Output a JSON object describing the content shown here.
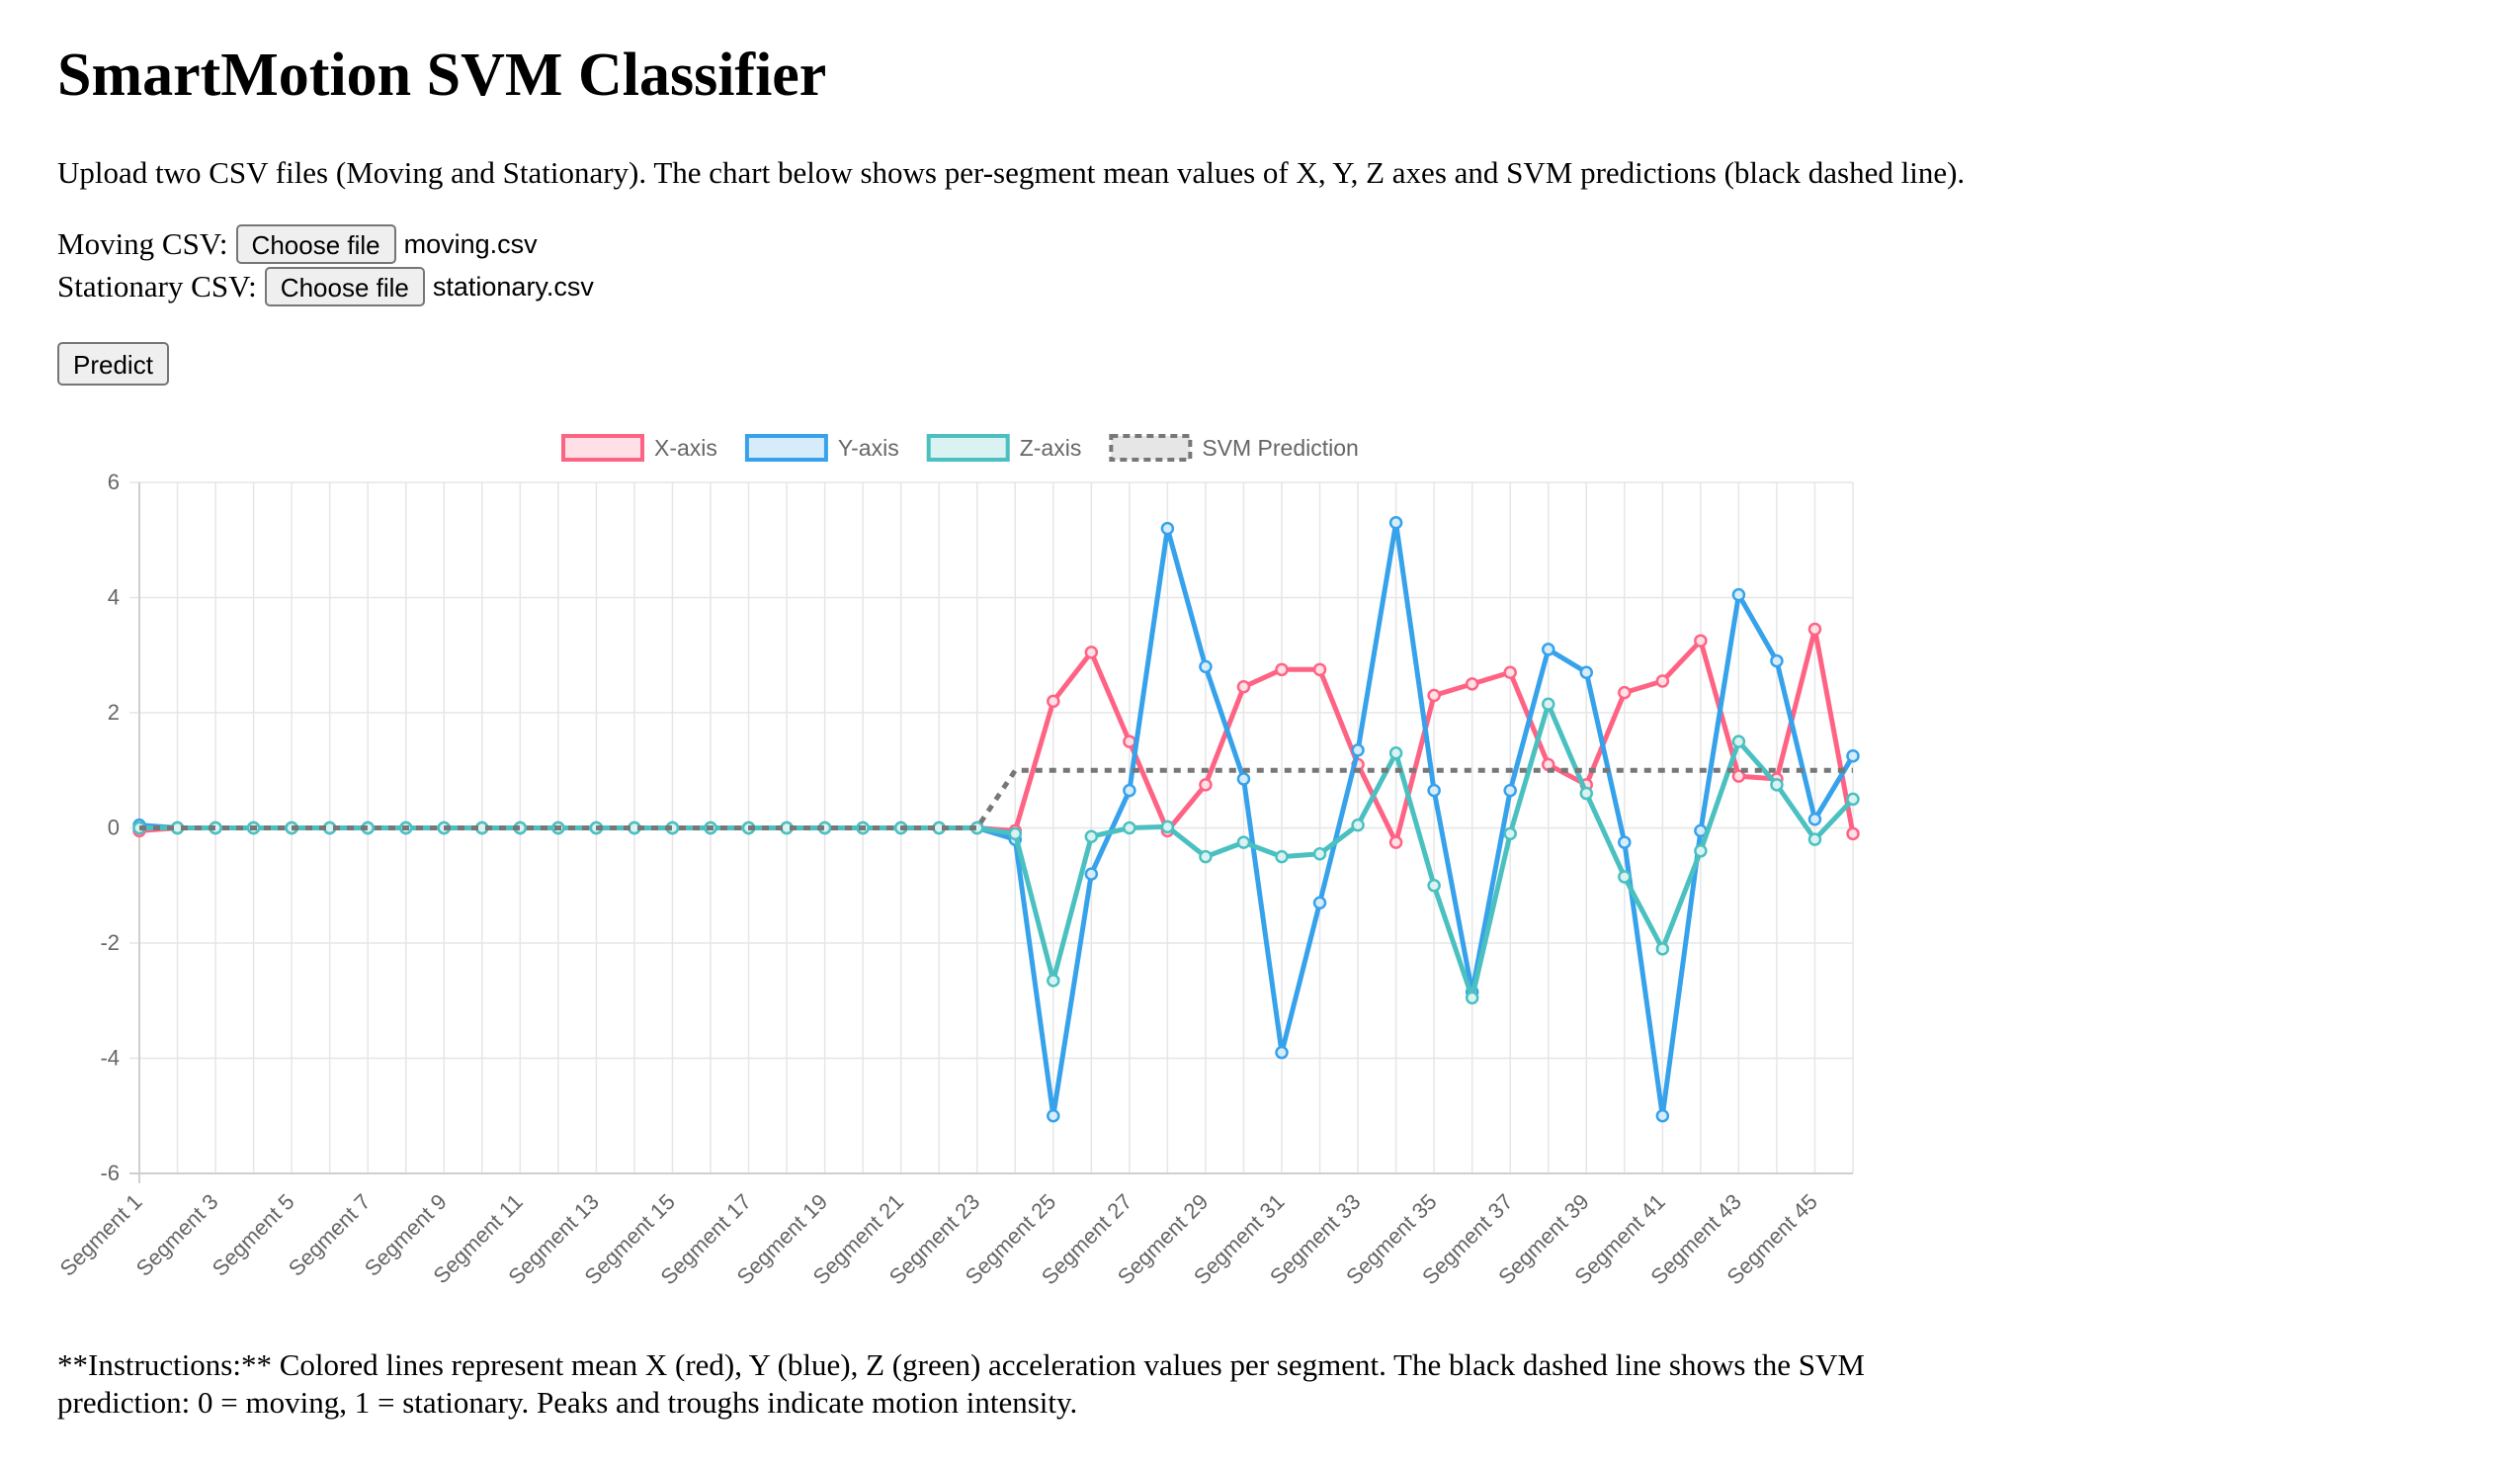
{
  "page": {
    "title": "SmartMotion SVM Classifier",
    "description": "Upload two CSV files (Moving and Stationary). The chart below shows per-segment mean values of X, Y, Z axes and SVM predictions (black dashed line).",
    "moving_label": "Moving CSV:",
    "moving_button": "Choose file",
    "moving_file": "moving.csv",
    "stationary_label": "Stationary CSV:",
    "stationary_button": "Choose file",
    "stationary_file": "stationary.csv",
    "predict_button": "Predict",
    "instructions": "**Instructions:** Colored lines represent mean X (red), Y (blue), Z (green) acceleration values per segment. The black dashed line shows the SVM prediction: 0 = moving, 1 = stationary. Peaks and troughs indicate motion intensity."
  },
  "chart_data": {
    "type": "line",
    "categories": [
      "Segment 1",
      "Segment 2",
      "Segment 3",
      "Segment 4",
      "Segment 5",
      "Segment 6",
      "Segment 7",
      "Segment 8",
      "Segment 9",
      "Segment 10",
      "Segment 11",
      "Segment 12",
      "Segment 13",
      "Segment 14",
      "Segment 15",
      "Segment 16",
      "Segment 17",
      "Segment 18",
      "Segment 19",
      "Segment 20",
      "Segment 21",
      "Segment 22",
      "Segment 23",
      "Segment 24",
      "Segment 25",
      "Segment 26",
      "Segment 27",
      "Segment 28",
      "Segment 29",
      "Segment 30",
      "Segment 31",
      "Segment 32",
      "Segment 33",
      "Segment 34",
      "Segment 35",
      "Segment 36",
      "Segment 37",
      "Segment 38",
      "Segment 39",
      "Segment 40",
      "Segment 41",
      "Segment 42",
      "Segment 43",
      "Segment 44",
      "Segment 45",
      "Segment 46"
    ],
    "ylim": [
      -6,
      6
    ],
    "yticks": [
      6,
      4,
      2,
      0,
      -2,
      -4,
      -6
    ],
    "grid": true,
    "legend_position": "top",
    "series": [
      {
        "name": "X-axis",
        "color": "#ff6384",
        "fill": "#ffe0e6",
        "dashed": false,
        "points": true,
        "values": [
          -0.05,
          0,
          0,
          0,
          0,
          0,
          0,
          0,
          0,
          0,
          0,
          0,
          0,
          0,
          0,
          0,
          0,
          0,
          0,
          0,
          0,
          0,
          0,
          -0.05,
          2.2,
          3.05,
          1.5,
          -0.05,
          0.75,
          2.45,
          2.75,
          2.75,
          1.1,
          -0.25,
          2.3,
          2.5,
          2.7,
          1.1,
          0.75,
          2.35,
          2.55,
          3.25,
          0.9,
          0.85,
          3.45,
          -0.1
        ]
      },
      {
        "name": "Y-axis",
        "color": "#36a2eb",
        "fill": "#d7ecfb",
        "dashed": false,
        "points": true,
        "values": [
          0.05,
          0,
          0,
          0,
          0,
          0,
          0,
          0,
          0,
          0,
          0,
          0,
          0,
          0,
          0,
          0,
          0,
          0,
          0,
          0,
          0,
          0,
          0,
          -0.2,
          -5.0,
          -0.8,
          0.65,
          5.2,
          2.8,
          0.85,
          -3.9,
          -1.3,
          1.35,
          5.3,
          0.65,
          -2.85,
          0.65,
          3.1,
          2.7,
          -0.25,
          -5.0,
          -0.05,
          4.05,
          2.9,
          0.15,
          1.25
        ]
      },
      {
        "name": "Z-axis",
        "color": "#4bc0c0",
        "fill": "#dbf2f2",
        "dashed": false,
        "points": true,
        "values": [
          0,
          0,
          0,
          0,
          0,
          0,
          0,
          0,
          0,
          0,
          0,
          0,
          0,
          0,
          0,
          0,
          0,
          0,
          0,
          0,
          0,
          0,
          0,
          -0.1,
          -2.65,
          -0.15,
          0,
          0.02,
          -0.5,
          -0.25,
          -0.5,
          -0.45,
          0.05,
          1.3,
          -1.0,
          -2.95,
          -0.1,
          2.15,
          0.6,
          -0.85,
          -2.1,
          -0.4,
          1.5,
          0.75,
          -0.2,
          0.5
        ]
      },
      {
        "name": "SVM Prediction",
        "color": "#777777",
        "fill": "#e6e6e6",
        "dashed": true,
        "points": false,
        "values": [
          0,
          0,
          0,
          0,
          0,
          0,
          0,
          0,
          0,
          0,
          0,
          0,
          0,
          0,
          0,
          0,
          0,
          0,
          0,
          0,
          0,
          0,
          0,
          1,
          1,
          1,
          1,
          1,
          1,
          1,
          1,
          1,
          1,
          1,
          1,
          1,
          1,
          1,
          1,
          1,
          1,
          1,
          1,
          1,
          1,
          1
        ]
      }
    ]
  }
}
